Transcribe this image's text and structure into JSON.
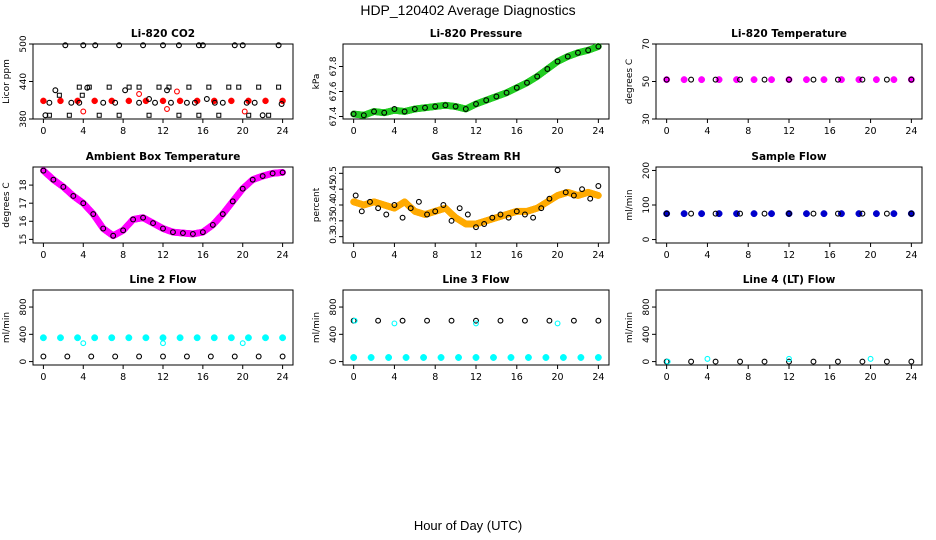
{
  "title": "HDP_120402  Average Diagnostics",
  "xlabel": "Hour of Day (UTC)",
  "chart_data": [
    {
      "type": "scatter",
      "title": "Li-820 CO2",
      "ylabel": "Licor ppm",
      "xlim": [
        0,
        24
      ],
      "ylim": [
        380,
        500
      ],
      "xticks": [
        0,
        4,
        8,
        12,
        16,
        20,
        24
      ],
      "yticks": [
        380,
        440,
        500
      ],
      "series": [
        {
          "color": "#ff0000",
          "marker": "filled",
          "points": "band",
          "x": [
            0,
            24
          ],
          "y": [
            409,
            409
          ],
          "spread": 2
        },
        {
          "color": "#000000",
          "marker": "open-circle",
          "x": [
            0.2,
            0.6,
            1.2,
            2.2,
            2.8,
            3.6,
            4.0,
            4.4,
            5.2,
            6.0,
            7.2,
            7.6,
            8.2,
            9.6,
            10.0,
            10.6,
            11.2,
            12.0,
            12.4,
            12.8,
            13.6,
            14.4,
            15.2,
            15.6,
            16.0,
            16.4,
            17.2,
            18.0,
            19.2,
            20.0,
            20.4,
            21.2,
            22.0,
            23.6,
            23.9
          ],
          "y": [
            386,
            406,
            426,
            498,
            406,
            406,
            498,
            430,
            498,
            406,
            406,
            498,
            426,
            406,
            498,
            412,
            406,
            498,
            426,
            406,
            498,
            406,
            406,
            498,
            498,
            412,
            406,
            406,
            498,
            498,
            406,
            406,
            386,
            498,
            404
          ]
        },
        {
          "color": "#000000",
          "marker": "open-square",
          "x": [
            0.6,
            1.6,
            2.6,
            3.6,
            3.9,
            4.6,
            5.6,
            6.6,
            7.6,
            8.6,
            9.6,
            10.6,
            11.6,
            12.6,
            13.6,
            14.6,
            15.6,
            16.6,
            17.6,
            18.6,
            19.6,
            20.6,
            21.6,
            22.6,
            23.6
          ],
          "y": [
            386,
            418,
            386,
            431,
            418,
            431,
            386,
            431,
            386,
            431,
            431,
            386,
            431,
            431,
            386,
            431,
            386,
            431,
            386,
            431,
            431,
            386,
            431,
            386,
            431
          ]
        },
        {
          "color": "#ff0000",
          "marker": "open-circle",
          "x": [
            4.0,
            9.6,
            12.4,
            13.4,
            20.2
          ],
          "y": [
            392,
            420,
            396,
            424,
            392
          ]
        }
      ]
    },
    {
      "type": "scatter",
      "title": "Li-820 Pressure",
      "ylabel": "kPa",
      "xlim": [
        0,
        24
      ],
      "ylim": [
        67.38,
        67.98
      ],
      "xticks": [
        0,
        4,
        8,
        12,
        16,
        20,
        24
      ],
      "yticks": [
        67.4,
        67.6,
        67.8
      ],
      "series": [
        {
          "color": "#22cc22",
          "marker": "filled",
          "x": [
            0,
            1,
            2,
            3,
            4,
            5,
            6,
            7,
            8,
            9,
            10,
            11,
            12,
            13,
            14,
            15,
            16,
            17,
            18,
            19,
            20,
            21,
            22,
            23,
            24
          ],
          "y": [
            67.42,
            67.41,
            67.44,
            67.43,
            67.45,
            67.44,
            67.46,
            67.47,
            67.48,
            67.49,
            67.48,
            67.46,
            67.5,
            67.53,
            67.56,
            67.59,
            67.63,
            67.67,
            67.72,
            67.78,
            67.84,
            67.88,
            67.91,
            67.93,
            67.96
          ]
        },
        {
          "color": "#000000",
          "marker": "open-circle",
          "x": [
            0,
            1,
            2,
            3,
            4,
            5,
            6,
            7,
            8,
            9,
            10,
            11,
            12,
            13,
            14,
            15,
            16,
            17,
            18,
            19,
            20,
            21,
            22,
            23,
            24
          ],
          "y": [
            67.42,
            67.41,
            67.44,
            67.43,
            67.46,
            67.44,
            67.46,
            67.47,
            67.48,
            67.49,
            67.48,
            67.46,
            67.5,
            67.53,
            67.56,
            67.59,
            67.63,
            67.67,
            67.72,
            67.78,
            67.84,
            67.88,
            67.91,
            67.93,
            67.96
          ]
        }
      ]
    },
    {
      "type": "scatter",
      "title": "Li-820 Temperature",
      "ylabel": "degrees C",
      "xlim": [
        0,
        24
      ],
      "ylim": [
        30,
        70
      ],
      "xticks": [
        0,
        4,
        8,
        12,
        16,
        20,
        24
      ],
      "yticks": [
        30,
        50,
        70
      ],
      "series": [
        {
          "color": "#ff00ff",
          "marker": "filled",
          "x": [
            0,
            24
          ],
          "y": [
            51,
            51
          ]
        },
        {
          "color": "#000000",
          "marker": "open-circle",
          "x": [
            0,
            24
          ],
          "y": [
            51,
            51
          ]
        }
      ]
    },
    {
      "type": "scatter",
      "title": "Ambient Box Temperature",
      "ylabel": "degrees C",
      "xlim": [
        0,
        24
      ],
      "ylim": [
        14.8,
        19.0
      ],
      "xticks": [
        0,
        4,
        8,
        12,
        16,
        20,
        24
      ],
      "yticks": [
        15,
        16,
        17,
        18
      ],
      "series": [
        {
          "color": "#ff00ff",
          "marker": "filled",
          "x": [
            0,
            1,
            2,
            3,
            4,
            5,
            6,
            7,
            8,
            9,
            10,
            11,
            12,
            13,
            14,
            15,
            16,
            17,
            18,
            19,
            20,
            21,
            22,
            23,
            24
          ],
          "y": [
            18.8,
            18.3,
            17.9,
            17.4,
            17.0,
            16.4,
            15.6,
            15.2,
            15.5,
            16.1,
            16.2,
            15.9,
            15.6,
            15.4,
            15.35,
            15.3,
            15.4,
            15.8,
            16.4,
            17.1,
            17.8,
            18.3,
            18.5,
            18.65,
            18.7
          ]
        },
        {
          "color": "#000000",
          "marker": "open-circle",
          "x": [
            0,
            1,
            2,
            3,
            4,
            5,
            6,
            7,
            8,
            9,
            10,
            11,
            12,
            13,
            14,
            15,
            16,
            17,
            18,
            19,
            20,
            21,
            22,
            23,
            24
          ],
          "y": [
            18.8,
            18.3,
            17.9,
            17.4,
            17.0,
            16.4,
            15.6,
            15.2,
            15.5,
            16.1,
            16.2,
            15.9,
            15.6,
            15.4,
            15.35,
            15.3,
            15.4,
            15.8,
            16.4,
            17.1,
            17.8,
            18.3,
            18.5,
            18.65,
            18.7
          ]
        }
      ]
    },
    {
      "type": "scatter",
      "title": "Gas Stream RH",
      "ylabel": "percent",
      "xlim": [
        0,
        24
      ],
      "ylim": [
        0.28,
        0.52
      ],
      "xticks": [
        0,
        4,
        8,
        12,
        16,
        20,
        24
      ],
      "yticks": [
        0.3,
        0.35,
        0.4,
        0.45,
        0.5
      ],
      "series": [
        {
          "color": "#ffaa00",
          "marker": "filled",
          "x": [
            0,
            1,
            2,
            3,
            4,
            5,
            6,
            7,
            8,
            9,
            10,
            11,
            12,
            13,
            14,
            15,
            16,
            17,
            18,
            19,
            20,
            21,
            22,
            23,
            24
          ],
          "y": [
            0.41,
            0.4,
            0.41,
            0.4,
            0.39,
            0.41,
            0.38,
            0.37,
            0.38,
            0.39,
            0.36,
            0.34,
            0.34,
            0.35,
            0.36,
            0.37,
            0.38,
            0.38,
            0.39,
            0.41,
            0.43,
            0.44,
            0.43,
            0.44,
            0.43
          ]
        },
        {
          "color": "#000000",
          "marker": "open-circle",
          "x": [
            0.2,
            0.8,
            1.6,
            2.4,
            3.2,
            4.0,
            4.8,
            5.6,
            6.4,
            7.2,
            8.0,
            8.8,
            9.6,
            10.4,
            11.2,
            12.0,
            12.8,
            13.6,
            14.4,
            15.2,
            16.0,
            16.8,
            17.6,
            18.4,
            19.2,
            20.0,
            20.8,
            21.6,
            22.4,
            23.2,
            24.0
          ],
          "y": [
            0.43,
            0.38,
            0.41,
            0.39,
            0.37,
            0.4,
            0.36,
            0.39,
            0.41,
            0.37,
            0.38,
            0.4,
            0.35,
            0.39,
            0.37,
            0.33,
            0.34,
            0.36,
            0.37,
            0.36,
            0.38,
            0.37,
            0.36,
            0.39,
            0.42,
            0.51,
            0.44,
            0.43,
            0.45,
            0.42,
            0.46
          ]
        }
      ]
    },
    {
      "type": "scatter",
      "title": "Sample Flow",
      "ylabel": "ml/min",
      "xlim": [
        0,
        24
      ],
      "ylim": [
        -10,
        210
      ],
      "xticks": [
        0,
        4,
        8,
        12,
        16,
        20,
        24
      ],
      "yticks": [
        0,
        100,
        200
      ],
      "series": [
        {
          "color": "#0000cc",
          "marker": "filled",
          "x": [
            0,
            24
          ],
          "y": [
            75,
            75
          ]
        },
        {
          "color": "#000000",
          "marker": "open-circle",
          "x": [
            0,
            24
          ],
          "y": [
            75,
            75
          ]
        }
      ]
    },
    {
      "type": "scatter",
      "title": "Line 2 Flow",
      "ylabel": "ml/min",
      "xlim": [
        0,
        24
      ],
      "ylim": [
        -50,
        1050
      ],
      "xticks": [
        0,
        4,
        8,
        12,
        16,
        20,
        24
      ],
      "yticks": [
        0,
        400,
        800
      ],
      "series": [
        {
          "color": "#00ffff",
          "marker": "filled",
          "x": [
            0,
            24
          ],
          "y": [
            350,
            350
          ]
        },
        {
          "color": "#00ffff",
          "marker": "open-circle",
          "x": [
            4.0,
            12.0,
            20.0
          ],
          "y": [
            270,
            270,
            270
          ]
        },
        {
          "color": "#000000",
          "marker": "open-circle",
          "x": [
            0,
            24
          ],
          "y": [
            75,
            75
          ]
        }
      ]
    },
    {
      "type": "scatter",
      "title": "Line 3 Flow",
      "ylabel": "ml/min",
      "xlim": [
        0,
        24
      ],
      "ylim": [
        -50,
        1050
      ],
      "xticks": [
        0,
        4,
        8,
        12,
        16,
        20,
        24
      ],
      "yticks": [
        0,
        400,
        800
      ],
      "series": [
        {
          "color": "#00ffff",
          "marker": "filled",
          "x": [
            0,
            24
          ],
          "y": [
            60,
            60
          ]
        },
        {
          "color": "#000000",
          "marker": "open-circle",
          "x": [
            0,
            24
          ],
          "y": [
            600,
            600
          ]
        },
        {
          "color": "#00ffff",
          "marker": "open-circle",
          "x": [
            0.1,
            4.0,
            12.0,
            20.0
          ],
          "y": [
            600,
            560,
            560,
            560
          ]
        }
      ]
    },
    {
      "type": "scatter",
      "title": "Line 4 (LT) Flow",
      "ylabel": "ml/min",
      "xlim": [
        0,
        24
      ],
      "ylim": [
        -50,
        1050
      ],
      "xticks": [
        0,
        4,
        8,
        12,
        16,
        20,
        24
      ],
      "yticks": [
        0,
        400,
        800
      ],
      "series": [
        {
          "color": "#000000",
          "marker": "open-circle",
          "x": [
            0,
            24
          ],
          "y": [
            0,
            0
          ]
        },
        {
          "color": "#00ffff",
          "marker": "open-circle",
          "x": [
            0.1,
            4.0,
            12.0,
            20.0
          ],
          "y": [
            0,
            40,
            40,
            40
          ]
        }
      ]
    }
  ]
}
